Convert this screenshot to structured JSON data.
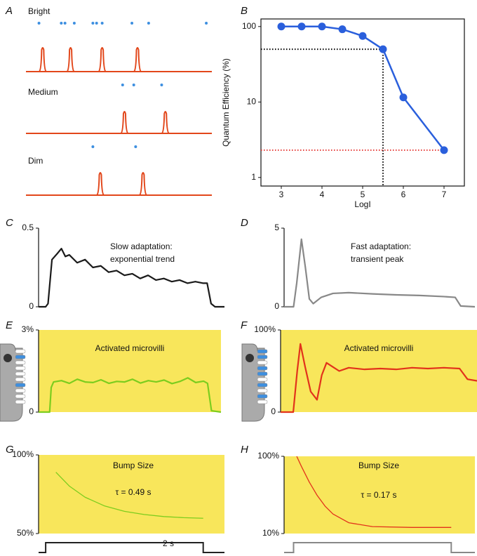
{
  "chart_data": [
    {
      "panel": "A",
      "type": "raster",
      "xlim": [
        0,
        100
      ],
      "dot_color": "#3d8fe0",
      "trace_color": "#e2471b",
      "rows": [
        {
          "label": "Bright",
          "photons": [
            7,
            19,
            21,
            26,
            36,
            38,
            41,
            57,
            66,
            97
          ],
          "bumps": [
            9,
            24,
            41,
            60
          ]
        },
        {
          "label": "Medium",
          "photons": [
            52,
            58,
            73
          ],
          "bumps": [
            53,
            75
          ]
        },
        {
          "label": "Dim",
          "photons": [
            36,
            59
          ],
          "bumps": [
            40,
            63
          ]
        }
      ]
    },
    {
      "panel": "B",
      "type": "line",
      "log_y": true,
      "markers": true,
      "color": "#2a5fdc",
      "x_label": "LogI",
      "y_label": "Quantum Efficiency (%)",
      "x": [
        3,
        3.5,
        4,
        4.5,
        5,
        5.5,
        6,
        7
      ],
      "values": [
        100,
        100,
        100,
        92,
        75,
        50,
        11.5,
        2.3
      ],
      "xlim": [
        2.5,
        7.5
      ],
      "ylim": [
        0.77,
        126
      ],
      "xticks": [
        3,
        4,
        5,
        6,
        7
      ],
      "yticks": [
        1,
        10,
        100
      ],
      "guides": [
        {
          "x": 5.5,
          "y": 50,
          "color": "#000000",
          "drop": true
        },
        {
          "x": 7,
          "y": 2.3,
          "color": "#e53935",
          "drop": false
        }
      ]
    },
    {
      "panel": "C",
      "type": "line",
      "color": "#1a1a1a",
      "annotations": [
        "Slow adaptation:",
        "exponential trend"
      ],
      "x": [
        -0.09,
        0,
        0.03,
        0.08,
        0.15,
        0.2,
        0.25,
        0.3,
        0.4,
        0.5,
        0.6,
        0.7,
        0.8,
        0.9,
        1.0,
        1.1,
        1.2,
        1.3,
        1.4,
        1.5,
        1.6,
        1.7,
        1.8,
        1.9,
        2.0,
        2.05,
        2.1,
        2.15,
        2.27
      ],
      "values": [
        0,
        0,
        0.02,
        0.3,
        0.34,
        0.37,
        0.32,
        0.33,
        0.28,
        0.3,
        0.25,
        0.26,
        0.22,
        0.23,
        0.2,
        0.21,
        0.18,
        0.2,
        0.17,
        0.18,
        0.16,
        0.17,
        0.15,
        0.16,
        0.15,
        0.15,
        0.02,
        0,
        0
      ],
      "xlim": [
        -0.09,
        2.27
      ],
      "ylim": [
        0,
        0.5
      ],
      "yticks": [
        0,
        0.5
      ]
    },
    {
      "panel": "D",
      "type": "line",
      "color": "#888888",
      "annotations": [
        "Fast adaptation:",
        "transient peak"
      ],
      "x": [
        -0.12,
        0,
        0.04,
        0.1,
        0.15,
        0.2,
        0.25,
        0.35,
        0.5,
        0.7,
        1.0,
        1.3,
        1.6,
        1.9,
        2.05,
        2.12,
        2.3
      ],
      "values": [
        0,
        0,
        1.5,
        4.3,
        2.5,
        0.5,
        0.2,
        0.6,
        0.85,
        0.9,
        0.82,
        0.76,
        0.72,
        0.65,
        0.6,
        0.05,
        0
      ],
      "xlim": [
        -0.12,
        2.3
      ],
      "ylim": [
        0,
        5
      ],
      "yticks": [
        0,
        5
      ]
    },
    {
      "panel": "E",
      "type": "line",
      "color": "#7ccd1e",
      "background": "#f8e65b",
      "annotations": [
        "Activated microvilli"
      ],
      "x": [
        -0.09,
        0.05,
        0.07,
        0.1,
        0.2,
        0.3,
        0.4,
        0.5,
        0.6,
        0.7,
        0.8,
        0.9,
        1.0,
        1.1,
        1.2,
        1.3,
        1.4,
        1.5,
        1.6,
        1.7,
        1.8,
        1.9,
        2.0,
        2.05,
        2.1,
        2.22
      ],
      "values": [
        0,
        0,
        0.9,
        1.1,
        1.15,
        1.05,
        1.2,
        1.1,
        1.08,
        1.18,
        1.05,
        1.12,
        1.1,
        1.2,
        1.06,
        1.15,
        1.1,
        1.17,
        1.04,
        1.12,
        1.25,
        1.08,
        1.13,
        1.05,
        0.05,
        0
      ],
      "xlim": [
        -0.09,
        2.22
      ],
      "ylim": [
        0,
        3
      ],
      "yticks": [
        0,
        {
          "value": 3,
          "label": "3%"
        }
      ]
    },
    {
      "panel": "F",
      "type": "line",
      "color": "#e2321b",
      "background": "#f8e65b",
      "annotations": [
        "Activated microvilli"
      ],
      "x": [
        -0.16,
        0,
        0.05,
        0.09,
        0.15,
        0.22,
        0.3,
        0.36,
        0.42,
        0.5,
        0.58,
        0.7,
        0.9,
        1.1,
        1.3,
        1.5,
        1.7,
        1.9,
        2.1,
        2.2,
        2.32
      ],
      "values": [
        0,
        0,
        50,
        83,
        55,
        25,
        15,
        45,
        60,
        55,
        50,
        54,
        52,
        53,
        52,
        54,
        53,
        54,
        53,
        40,
        38
      ],
      "xlim": [
        -0.16,
        2.32
      ],
      "ylim": [
        0,
        100
      ],
      "yticks": [
        0,
        {
          "value": 100,
          "label": "100%"
        }
      ]
    },
    {
      "panel": "G",
      "type": "line",
      "color": "#7ccd1e",
      "background": "#f8e65b",
      "annotations": [
        "Bump Size",
        "τ = 0.49 s"
      ],
      "x": [
        0.13,
        0.3,
        0.5,
        0.75,
        1.0,
        1.25,
        1.5,
        1.75,
        2.0
      ],
      "values": [
        89,
        80.2,
        73.1,
        67.5,
        64.1,
        62.1,
        60.8,
        60.1,
        59.7
      ],
      "xlim": [
        -0.09,
        2.27
      ],
      "ylim": [
        50,
        100
      ],
      "yticks": [
        {
          "value": 50,
          "label": "50%"
        },
        {
          "value": 100,
          "label": "100%"
        }
      ],
      "stimulus": {
        "start": 0,
        "end": 2,
        "label": "2 s",
        "color": "#222222"
      }
    },
    {
      "panel": "H",
      "type": "line",
      "log_y": true,
      "color": "#e2321b",
      "background": "#f8e65b",
      "annotations": [
        "Bump Size",
        "τ = 0.17 s"
      ],
      "x": [
        0.04,
        0.1,
        0.2,
        0.3,
        0.4,
        0.5,
        0.7,
        1.0,
        1.5,
        2.0
      ],
      "values": [
        100,
        73.9,
        46.3,
        31.1,
        22.6,
        17.9,
        13.8,
        12.3,
        12,
        12
      ],
      "xlim": [
        -0.12,
        2.3
      ],
      "ylim": [
        10,
        100
      ],
      "yticks": [
        {
          "value": 10,
          "label": "10%"
        },
        {
          "value": 100,
          "label": "100%"
        }
      ],
      "stimulus": {
        "start": 0,
        "end": 2,
        "color": "#888888"
      }
    }
  ]
}
